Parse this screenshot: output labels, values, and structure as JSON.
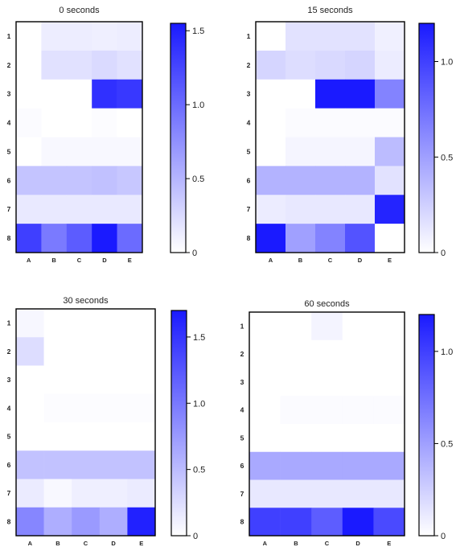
{
  "chart_data": [
    {
      "type": "heatmap",
      "title": "0 seconds",
      "rows": [
        "1",
        "2",
        "3",
        "4",
        "5",
        "6",
        "7",
        "8"
      ],
      "columns": [
        "A",
        "B",
        "C",
        "D",
        "E"
      ],
      "values": [
        [
          0.0,
          0.12,
          0.12,
          0.11,
          0.12
        ],
        [
          0.0,
          0.2,
          0.2,
          0.25,
          0.2
        ],
        [
          0.0,
          0.0,
          0.0,
          1.4,
          1.35
        ],
        [
          0.03,
          0.0,
          0.0,
          0.02,
          0.0
        ],
        [
          0.0,
          0.05,
          0.05,
          0.05,
          0.05
        ],
        [
          0.4,
          0.4,
          0.4,
          0.42,
          0.38
        ],
        [
          0.15,
          0.15,
          0.15,
          0.15,
          0.15
        ],
        [
          1.3,
          0.9,
          1.1,
          1.55,
          1.0
        ]
      ],
      "colorbar": {
        "min": 0,
        "max": 1.55,
        "ticks": [
          0,
          0.5,
          1.0,
          1.5
        ],
        "tick_labels": [
          "0",
          "0.5",
          "1.0",
          "1.5"
        ]
      },
      "colors": {
        "low": "#ffffff",
        "high": "#1a1aff"
      }
    },
    {
      "type": "heatmap",
      "title": "15 seconds",
      "rows": [
        "1",
        "2",
        "3",
        "4",
        "5",
        "6",
        "7",
        "8"
      ],
      "columns": [
        "A",
        "B",
        "C",
        "D",
        "E"
      ],
      "values": [
        [
          0.0,
          0.15,
          0.15,
          0.15,
          0.08
        ],
        [
          0.22,
          0.18,
          0.2,
          0.22,
          0.1
        ],
        [
          0.0,
          0.0,
          1.2,
          1.2,
          0.65
        ],
        [
          0.0,
          0.02,
          0.02,
          0.02,
          0.02
        ],
        [
          0.0,
          0.05,
          0.05,
          0.05,
          0.35
        ],
        [
          0.4,
          0.4,
          0.4,
          0.4,
          0.15
        ],
        [
          0.1,
          0.12,
          0.12,
          0.12,
          1.15
        ],
        [
          1.2,
          0.5,
          0.65,
          0.9,
          0.0
        ]
      ],
      "colorbar": {
        "min": 0,
        "max": 1.2,
        "ticks": [
          0,
          0.5,
          1.0
        ],
        "tick_labels": [
          "0",
          "0.5",
          "1.0"
        ]
      },
      "colors": {
        "low": "#ffffff",
        "high": "#1a1aff"
      }
    },
    {
      "type": "heatmap",
      "title": "30 seconds",
      "rows": [
        "1",
        "2",
        "3",
        "4",
        "5",
        "6",
        "7",
        "8"
      ],
      "columns": [
        "A",
        "B",
        "C",
        "D",
        "E"
      ],
      "values": [
        [
          0.06,
          0.0,
          0.0,
          0.0,
          0.0
        ],
        [
          0.25,
          0.0,
          0.0,
          0.0,
          0.0
        ],
        [
          0.0,
          0.0,
          0.0,
          0.0,
          0.0
        ],
        [
          0.0,
          0.02,
          0.02,
          0.02,
          0.02
        ],
        [
          0.0,
          0.0,
          0.0,
          0.0,
          0.0
        ],
        [
          0.45,
          0.45,
          0.45,
          0.45,
          0.45
        ],
        [
          0.15,
          0.05,
          0.12,
          0.12,
          0.15
        ],
        [
          0.9,
          0.6,
          0.75,
          0.6,
          1.65
        ]
      ],
      "colorbar": {
        "min": 0,
        "max": 1.7,
        "ticks": [
          0,
          0.5,
          1.0,
          1.5
        ],
        "tick_labels": [
          "0",
          "0.5",
          "1.0",
          "1.5"
        ]
      },
      "colors": {
        "low": "#ffffff",
        "high": "#1a1aff"
      }
    },
    {
      "type": "heatmap",
      "title": "60 seconds",
      "rows": [
        "1",
        "2",
        "3",
        "4",
        "5",
        "6",
        "7",
        "8"
      ],
      "columns": [
        "A",
        "B",
        "C",
        "D",
        "E"
      ],
      "values": [
        [
          0.0,
          0.0,
          0.06,
          0.0,
          0.0
        ],
        [
          0.0,
          0.0,
          0.0,
          0.0,
          0.0
        ],
        [
          0.0,
          0.0,
          0.0,
          0.0,
          0.0
        ],
        [
          0.0,
          0.02,
          0.02,
          0.02,
          0.02
        ],
        [
          0.0,
          0.0,
          0.0,
          0.0,
          0.0
        ],
        [
          0.45,
          0.45,
          0.45,
          0.45,
          0.45
        ],
        [
          0.12,
          0.12,
          0.12,
          0.12,
          0.12
        ],
        [
          1.0,
          1.0,
          0.85,
          1.2,
          0.95
        ]
      ],
      "colorbar": {
        "min": 0,
        "max": 1.2,
        "ticks": [
          0,
          0.5,
          1.0
        ],
        "tick_labels": [
          "0",
          "0.5",
          "1.0"
        ]
      },
      "colors": {
        "low": "#ffffff",
        "high": "#1a1aff"
      }
    }
  ]
}
